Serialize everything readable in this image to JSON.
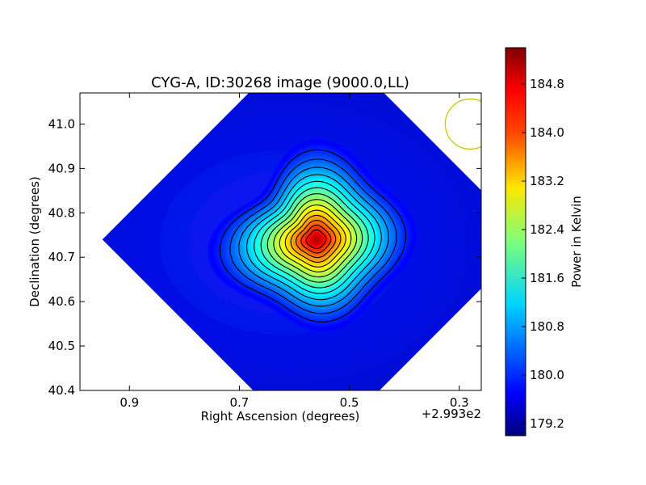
{
  "chart_data": {
    "type": "heatmap",
    "title": "CYG-A, ID:30268 image (9000.0,LL)",
    "xlabel": "Right Ascension (degrees)",
    "ylabel": "Declination (degrees)",
    "x_offset_label": "+2.993e2",
    "xlim": [
      0.99,
      0.26
    ],
    "ylim": [
      40.4,
      41.07
    ],
    "x_ticks": [
      {
        "value": 0.9,
        "label": "0.9"
      },
      {
        "value": 0.7,
        "label": "0.7"
      },
      {
        "value": 0.5,
        "label": "0.5"
      },
      {
        "value": 0.3,
        "label": "0.3"
      }
    ],
    "y_ticks": [
      {
        "value": 40.4,
        "label": "40.4"
      },
      {
        "value": 40.5,
        "label": "40.5"
      },
      {
        "value": 40.6,
        "label": "40.6"
      },
      {
        "value": 40.7,
        "label": "40.7"
      },
      {
        "value": 40.8,
        "label": "40.8"
      },
      {
        "value": 40.9,
        "label": "40.9"
      },
      {
        "value": 41.0,
        "label": "41.0"
      }
    ],
    "source_peak": {
      "ra": 0.56,
      "dec": 40.74,
      "value": 185.2
    },
    "background_value": 179.8,
    "colormap": "jet",
    "contour_color": "#000000",
    "beam_circle": {
      "ra": 0.28,
      "dec": 41.0,
      "color": "#c8c800"
    },
    "colorbar": {
      "label": "Power in Kelvin",
      "range": [
        179.0,
        185.4
      ],
      "ticks": [
        {
          "value": 179.2,
          "label": "179.2"
        },
        {
          "value": 180.0,
          "label": "180.0"
        },
        {
          "value": 180.8,
          "label": "180.8"
        },
        {
          "value": 181.6,
          "label": "181.6"
        },
        {
          "value": 182.4,
          "label": "182.4"
        },
        {
          "value": 183.2,
          "label": "183.2"
        },
        {
          "value": 184.0,
          "label": "184.0"
        },
        {
          "value": 184.8,
          "label": "184.8"
        }
      ]
    }
  }
}
